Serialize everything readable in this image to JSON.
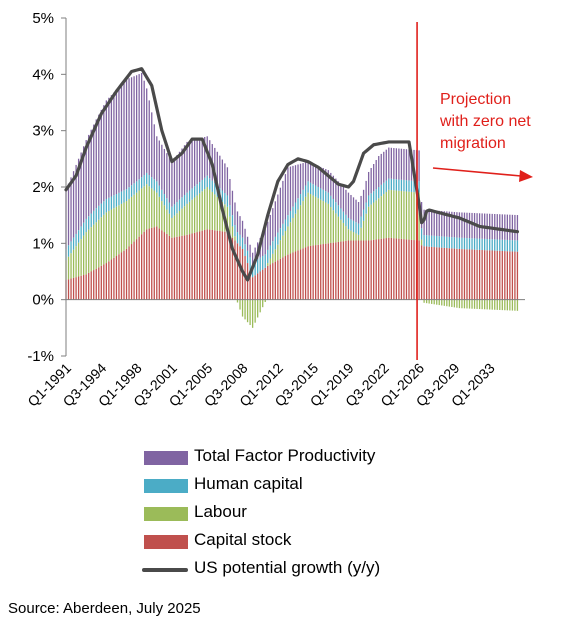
{
  "chart_data": {
    "type": "stacked-bar-line",
    "y_unit": "%",
    "ylim": [
      -1,
      5
    ],
    "yticks": [
      -1,
      0,
      1,
      2,
      3,
      4,
      5
    ],
    "ytick_labels": [
      "-1%",
      "0%",
      "1%",
      "2%",
      "3%",
      "4%",
      "5%"
    ],
    "x_start": 1991.0,
    "x_end": 2036.5,
    "x_ticks": [
      {
        "label": "Q1-1991",
        "t": 1991.0
      },
      {
        "label": "Q3-1994",
        "t": 1994.5
      },
      {
        "label": "Q1-1998",
        "t": 1998.0
      },
      {
        "label": "Q3-2001",
        "t": 2001.5
      },
      {
        "label": "Q1-2005",
        "t": 2005.0
      },
      {
        "label": "Q3-2008",
        "t": 2008.5
      },
      {
        "label": "Q1-2012",
        "t": 2012.0
      },
      {
        "label": "Q3-2015",
        "t": 2015.5
      },
      {
        "label": "Q1-2019",
        "t": 2019.0
      },
      {
        "label": "Q3-2022",
        "t": 2022.5
      },
      {
        "label": "Q1-2026",
        "t": 2026.0
      },
      {
        "label": "Q3-2029",
        "t": 2029.5
      },
      {
        "label": "Q1-2033",
        "t": 2033.0
      }
    ],
    "projection_start": 2026.0,
    "annotation": [
      "Projection",
      "with zero net",
      "migration"
    ],
    "series": [
      {
        "name": "Capital stock",
        "color": "#c0504d",
        "points": [
          [
            1991.0,
            0.35
          ],
          [
            1993.0,
            0.45
          ],
          [
            1995.0,
            0.65
          ],
          [
            1997.0,
            0.9
          ],
          [
            1999.0,
            1.25
          ],
          [
            2000.0,
            1.3
          ],
          [
            2001.5,
            1.1
          ],
          [
            2003.0,
            1.15
          ],
          [
            2005.0,
            1.25
          ],
          [
            2007.0,
            1.2
          ],
          [
            2008.5,
            0.9
          ],
          [
            2009.5,
            0.4
          ],
          [
            2011.0,
            0.6
          ],
          [
            2013.0,
            0.8
          ],
          [
            2015.0,
            0.95
          ],
          [
            2017.0,
            1.0
          ],
          [
            2019.0,
            1.05
          ],
          [
            2021.0,
            1.05
          ],
          [
            2023.0,
            1.1
          ],
          [
            2026.0,
            1.05
          ],
          [
            2026.3,
            0.95
          ],
          [
            2030.0,
            0.9
          ],
          [
            2036.0,
            0.85
          ]
        ]
      },
      {
        "name": "Labour",
        "color": "#9bbb59",
        "points": [
          [
            1991.0,
            0.35
          ],
          [
            1993.0,
            0.75
          ],
          [
            1995.0,
            0.9
          ],
          [
            1997.0,
            0.85
          ],
          [
            1999.0,
            0.8
          ],
          [
            2000.0,
            0.6
          ],
          [
            2001.5,
            0.35
          ],
          [
            2003.0,
            0.55
          ],
          [
            2005.0,
            0.75
          ],
          [
            2007.0,
            0.45
          ],
          [
            2008.5,
            -0.3
          ],
          [
            2009.5,
            -0.5
          ],
          [
            2011.0,
            0.05
          ],
          [
            2013.0,
            0.5
          ],
          [
            2015.0,
            0.95
          ],
          [
            2017.0,
            0.7
          ],
          [
            2019.0,
            0.2
          ],
          [
            2020.0,
            0.1
          ],
          [
            2021.0,
            0.6
          ],
          [
            2023.0,
            0.85
          ],
          [
            2026.0,
            0.85
          ],
          [
            2026.3,
            -0.05
          ],
          [
            2030.0,
            -0.15
          ],
          [
            2036.0,
            -0.2
          ]
        ]
      },
      {
        "name": "Human capital",
        "color": "#4bacc6",
        "points": [
          [
            1991.0,
            0.2
          ],
          [
            1994.0,
            0.25
          ],
          [
            1998.0,
            0.2
          ],
          [
            2002.0,
            0.2
          ],
          [
            2006.0,
            0.2
          ],
          [
            2008.5,
            0.2
          ],
          [
            2010.0,
            0.25
          ],
          [
            2013.0,
            0.2
          ],
          [
            2016.0,
            0.2
          ],
          [
            2019.0,
            0.2
          ],
          [
            2022.0,
            0.2
          ],
          [
            2026.0,
            0.2
          ],
          [
            2026.3,
            0.2
          ],
          [
            2030.0,
            0.2
          ],
          [
            2036.0,
            0.2
          ]
        ]
      },
      {
        "name": "Total Factor Productivity",
        "color": "#8064a2",
        "points": [
          [
            1991.0,
            1.05
          ],
          [
            1993.0,
            1.4
          ],
          [
            1995.0,
            1.75
          ],
          [
            1997.0,
            1.95
          ],
          [
            1998.5,
            1.85
          ],
          [
            2000.0,
            0.8
          ],
          [
            2001.5,
            0.8
          ],
          [
            2003.0,
            0.9
          ],
          [
            2005.0,
            0.7
          ],
          [
            2007.0,
            0.5
          ],
          [
            2008.5,
            0.3
          ],
          [
            2009.5,
            0.2
          ],
          [
            2011.0,
            0.5
          ],
          [
            2013.0,
            0.85
          ],
          [
            2015.0,
            0.35
          ],
          [
            2017.0,
            0.4
          ],
          [
            2019.0,
            0.45
          ],
          [
            2020.5,
            0.35
          ],
          [
            2022.0,
            0.55
          ],
          [
            2024.0,
            0.55
          ],
          [
            2026.0,
            0.55
          ],
          [
            2026.3,
            0.45
          ],
          [
            2030.0,
            0.45
          ],
          [
            2036.0,
            0.45
          ]
        ]
      },
      {
        "name": "US potential growth (y/y)",
        "type": "line",
        "color": "#4a4a4a",
        "points": [
          [
            1991.0,
            1.95
          ],
          [
            1992.0,
            2.2
          ],
          [
            1993.0,
            2.7
          ],
          [
            1994.5,
            3.3
          ],
          [
            1996.0,
            3.7
          ],
          [
            1997.5,
            4.05
          ],
          [
            1998.5,
            4.1
          ],
          [
            1999.5,
            3.8
          ],
          [
            2000.5,
            3.0
          ],
          [
            2001.5,
            2.45
          ],
          [
            2002.5,
            2.6
          ],
          [
            2003.5,
            2.85
          ],
          [
            2004.5,
            2.85
          ],
          [
            2005.5,
            2.4
          ],
          [
            2006.5,
            1.6
          ],
          [
            2007.5,
            0.9
          ],
          [
            2008.5,
            0.5
          ],
          [
            2009.0,
            0.35
          ],
          [
            2010.0,
            0.8
          ],
          [
            2011.0,
            1.5
          ],
          [
            2012.0,
            2.1
          ],
          [
            2013.0,
            2.4
          ],
          [
            2014.0,
            2.5
          ],
          [
            2015.0,
            2.45
          ],
          [
            2016.0,
            2.35
          ],
          [
            2017.0,
            2.2
          ],
          [
            2018.0,
            2.05
          ],
          [
            2019.0,
            2.0
          ],
          [
            2019.5,
            2.1
          ],
          [
            2020.5,
            2.6
          ],
          [
            2021.5,
            2.75
          ],
          [
            2023.0,
            2.8
          ],
          [
            2025.0,
            2.8
          ],
          [
            2026.0,
            1.7
          ],
          [
            2026.3,
            1.3
          ],
          [
            2026.8,
            1.6
          ],
          [
            2030.0,
            1.45
          ],
          [
            2032.0,
            1.3
          ],
          [
            2034.0,
            1.25
          ],
          [
            2036.0,
            1.2
          ]
        ]
      }
    ]
  },
  "legend": {
    "items": [
      {
        "label": "Total Factor Productivity",
        "color": "#8064a2"
      },
      {
        "label": "Human capital",
        "color": "#4bacc6"
      },
      {
        "label": "Labour",
        "color": "#9bbb59"
      },
      {
        "label": "Capital stock",
        "color": "#c0504d"
      },
      {
        "label": "US potential growth (y/y)",
        "color": "#4a4a4a"
      }
    ]
  },
  "source": "Source: Aberdeen, July 2025"
}
